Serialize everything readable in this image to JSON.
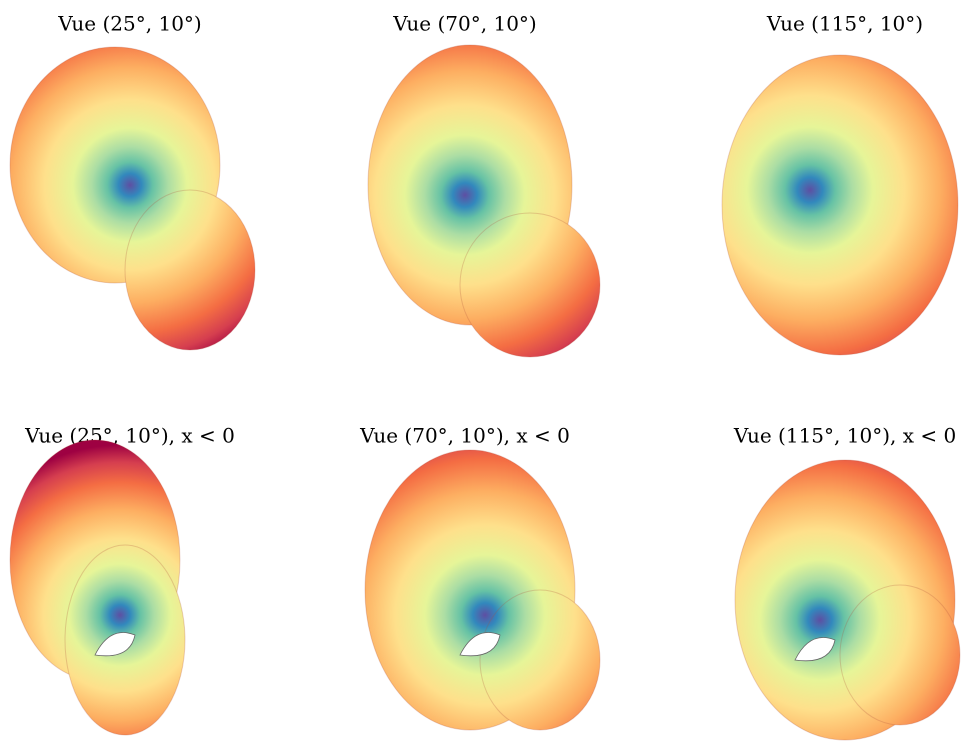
{
  "panels": [
    {
      "title": "Vue (25°, 10°)"
    },
    {
      "title": "Vue (70°, 10°)"
    },
    {
      "title": "Vue (115°, 10°)"
    },
    {
      "title": "Vue (25°, 10°), x < 0"
    },
    {
      "title": "Vue (70°, 10°), x < 0"
    },
    {
      "title": "Vue (115°, 10°), x < 0"
    }
  ]
}
